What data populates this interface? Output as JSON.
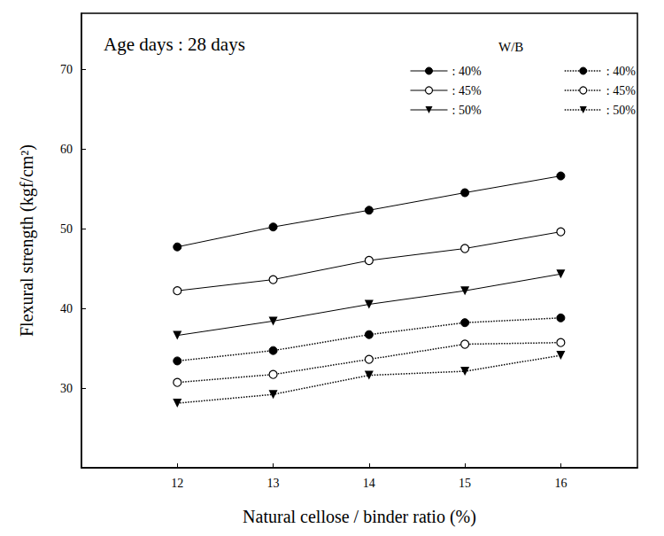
{
  "chart_data": {
    "type": "line",
    "title": "Age days : 28 days",
    "legend_title": "W/B",
    "x_label": "Natural cellose / binder ratio (%)",
    "y_label": "Flexural strength (kgf/cm²)",
    "x": [
      12,
      13,
      14,
      15,
      16
    ],
    "xlim": [
      11,
      16.8
    ],
    "xticks": [
      12,
      13,
      14,
      15,
      16
    ],
    "ylim": [
      20,
      77
    ],
    "yticks": [
      30,
      40,
      50,
      60,
      70
    ],
    "grid": false,
    "legend": "top-right",
    "series": [
      {
        "name": ": 40%",
        "color": "#000000",
        "marker": "filled_circle",
        "line_style": "solid",
        "values": [
          47.7,
          50.2,
          52.3,
          54.5,
          56.6
        ]
      },
      {
        "name": ": 45%",
        "color": "#000000",
        "marker": "open_circle",
        "line_style": "solid",
        "values": [
          42.2,
          43.6,
          46.0,
          47.5,
          49.6
        ]
      },
      {
        "name": ": 50%",
        "color": "#000000",
        "marker": "triangle_down",
        "line_style": "solid",
        "values": [
          36.6,
          38.4,
          40.5,
          42.2,
          44.3
        ]
      },
      {
        "name": ": 40%",
        "color": "#000000",
        "marker": "filled_circle",
        "line_style": "dotted",
        "values": [
          33.4,
          34.7,
          36.7,
          38.2,
          38.8
        ]
      },
      {
        "name": ": 45%",
        "color": "#000000",
        "marker": "open_circle",
        "line_style": "dotted",
        "values": [
          30.7,
          31.7,
          33.6,
          35.5,
          35.7
        ]
      },
      {
        "name": ": 50%",
        "color": "#000000",
        "marker": "triangle_down",
        "line_style": "dotted",
        "values": [
          28.1,
          29.2,
          31.6,
          32.1,
          34.1
        ]
      }
    ]
  }
}
